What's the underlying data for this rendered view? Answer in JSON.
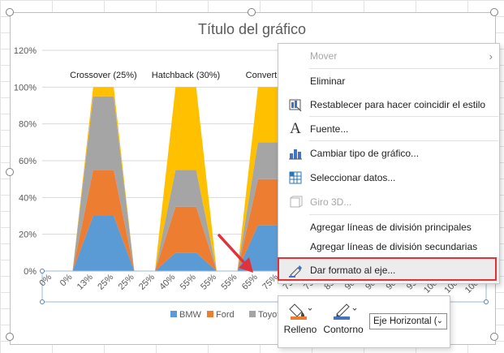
{
  "chart_data": {
    "type": "area",
    "title": "Título del gráfico",
    "ylim": [
      0,
      120
    ],
    "y_ticks": [
      "0%",
      "20%",
      "40%",
      "60%",
      "80%",
      "100%",
      "120%"
    ],
    "categories": [
      "0%",
      "0%",
      "13%",
      "25%",
      "25%",
      "25%",
      "40%",
      "55%",
      "55%",
      "55%",
      "65%",
      "75%",
      "75%",
      "75%",
      "83%",
      "90%",
      "90%",
      "90%",
      "95%",
      "100%",
      "100%",
      "100%"
    ],
    "series": [
      {
        "name": "BMW",
        "color": "#5b9bd5",
        "values": [
          0,
          0,
          30,
          30,
          0,
          0,
          10,
          10,
          0,
          0,
          25,
          25,
          0,
          0,
          15,
          15,
          0,
          0,
          20,
          20,
          0,
          0
        ]
      },
      {
        "name": "Ford",
        "color": "#ed7d31",
        "values": [
          0,
          0,
          25,
          25,
          0,
          0,
          25,
          25,
          0,
          0,
          25,
          25,
          0,
          0,
          25,
          25,
          0,
          0,
          25,
          25,
          0,
          0
        ]
      },
      {
        "name": "Toyota",
        "color": "#a5a5a5",
        "values": [
          0,
          0,
          40,
          40,
          0,
          0,
          20,
          20,
          0,
          0,
          20,
          20,
          0,
          0,
          20,
          20,
          0,
          0,
          20,
          20,
          0,
          0
        ]
      },
      {
        "name": "",
        "color": "#ffc000",
        "values": [
          0,
          0,
          5,
          5,
          0,
          0,
          45,
          45,
          0,
          0,
          30,
          30,
          0,
          0,
          40,
          40,
          0,
          0,
          35,
          35,
          0,
          0
        ]
      }
    ],
    "annotations": [
      "Crossover (25%)",
      "Hatchback (30%)",
      "Convertible"
    ],
    "legend_position": "bottom",
    "grid": true
  },
  "context_menu": {
    "items": [
      {
        "label": "Mover",
        "disabled": true,
        "icon": "none",
        "submenu": true
      },
      {
        "label": "Eliminar",
        "icon": "none"
      },
      {
        "label": "Restablecer para hacer coincidir el estilo",
        "icon": "reset-style-icon"
      },
      {
        "label": "Fuente...",
        "icon": "font-icon"
      },
      {
        "label": "Cambiar tipo de gráfico...",
        "icon": "change-chart-type-icon"
      },
      {
        "label": "Seleccionar datos...",
        "icon": "select-data-icon"
      },
      {
        "label": "Giro 3D...",
        "disabled": true,
        "icon": "3d-rotation-icon"
      },
      {
        "label": "Agregar líneas de división principales",
        "icon": "none"
      },
      {
        "label": "Agregar líneas de división secundarias",
        "icon": "none"
      },
      {
        "label": "Dar formato al eje...",
        "icon": "format-axis-icon",
        "selected": true
      }
    ]
  },
  "mini_toolbar": {
    "fill_label": "Relleno",
    "outline_label": "Contorno",
    "element_dropdown": "Eje Horizontal (",
    "fill_color": "#ed7d31",
    "outline_color": "#4472c4"
  }
}
